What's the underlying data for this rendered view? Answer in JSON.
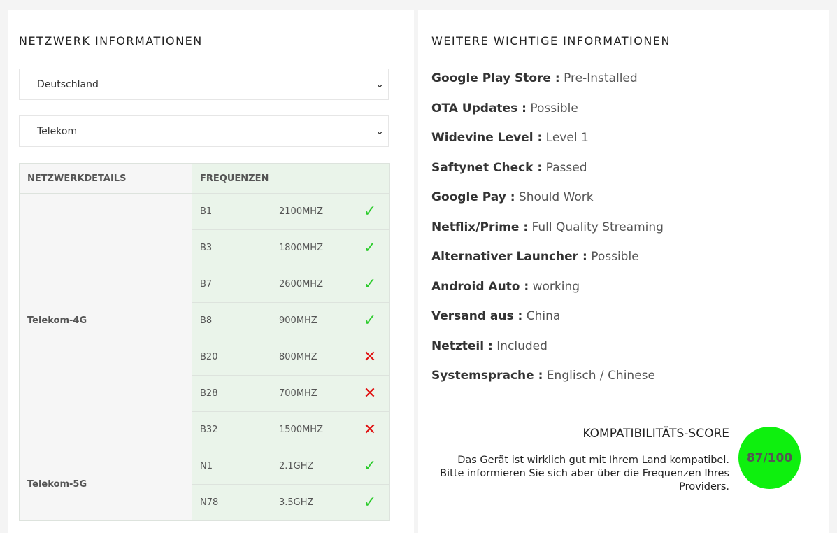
{
  "left": {
    "title": "NETZWERK INFORMATIONEN",
    "country_select": "Deutschland",
    "provider_select": "Telekom",
    "table": {
      "headers": [
        "NETZWERKDETAILS",
        "FREQUENZEN"
      ],
      "groups": [
        {
          "name": "Telekom-4G",
          "bands": [
            [
              "B1",
              "2100MHZ",
              true
            ],
            [
              "B3",
              "1800MHZ",
              true
            ],
            [
              "B7",
              "2600MHZ",
              true
            ],
            [
              "B8",
              "900MHZ",
              true
            ],
            [
              "B20",
              "800MHZ",
              false
            ],
            [
              "B28",
              "700MHZ",
              false
            ],
            [
              "B32",
              "1500MHZ",
              false
            ]
          ]
        },
        {
          "name": "Telekom-5G",
          "bands": [
            [
              "N1",
              "2.1GHZ",
              true
            ],
            [
              "N78",
              "3.5GHZ",
              true
            ]
          ]
        }
      ]
    }
  },
  "right": {
    "title": "WEITERE WICHTIGE INFORMATIONEN",
    "items": [
      {
        "label": "Google Play Store :",
        "value": "Pre-Installed"
      },
      {
        "label": "OTA Updates :",
        "value": "Possible"
      },
      {
        "label": "Widevine Level :",
        "value": "Level 1"
      },
      {
        "label": "Saftynet Check :",
        "value": "Passed"
      },
      {
        "label": "Google Pay :",
        "value": "Should Work"
      },
      {
        "label": "Netflix/Prime :",
        "value": "Full Quality Streaming"
      },
      {
        "label": "Alternativer Launcher :",
        "value": "Possible"
      },
      {
        "label": "Android Auto :",
        "value": "working"
      },
      {
        "label": "Versand aus :",
        "value": "China"
      },
      {
        "label": "Netzteil :",
        "value": "Included"
      },
      {
        "label": "Systemsprache :",
        "value": "Englisch / Chinese"
      }
    ],
    "score": {
      "title": "KOMPATIBILITÄTS-SCORE",
      "text": "Das Gerät ist wirklich gut mit Ihrem Land kompatibel. Bitte informieren Sie sich aber über die Frequenzen Ihres Providers.",
      "value": "87/100",
      "color": "#0ef00e"
    }
  },
  "icons": {
    "ok": "✓",
    "no": "✕"
  }
}
